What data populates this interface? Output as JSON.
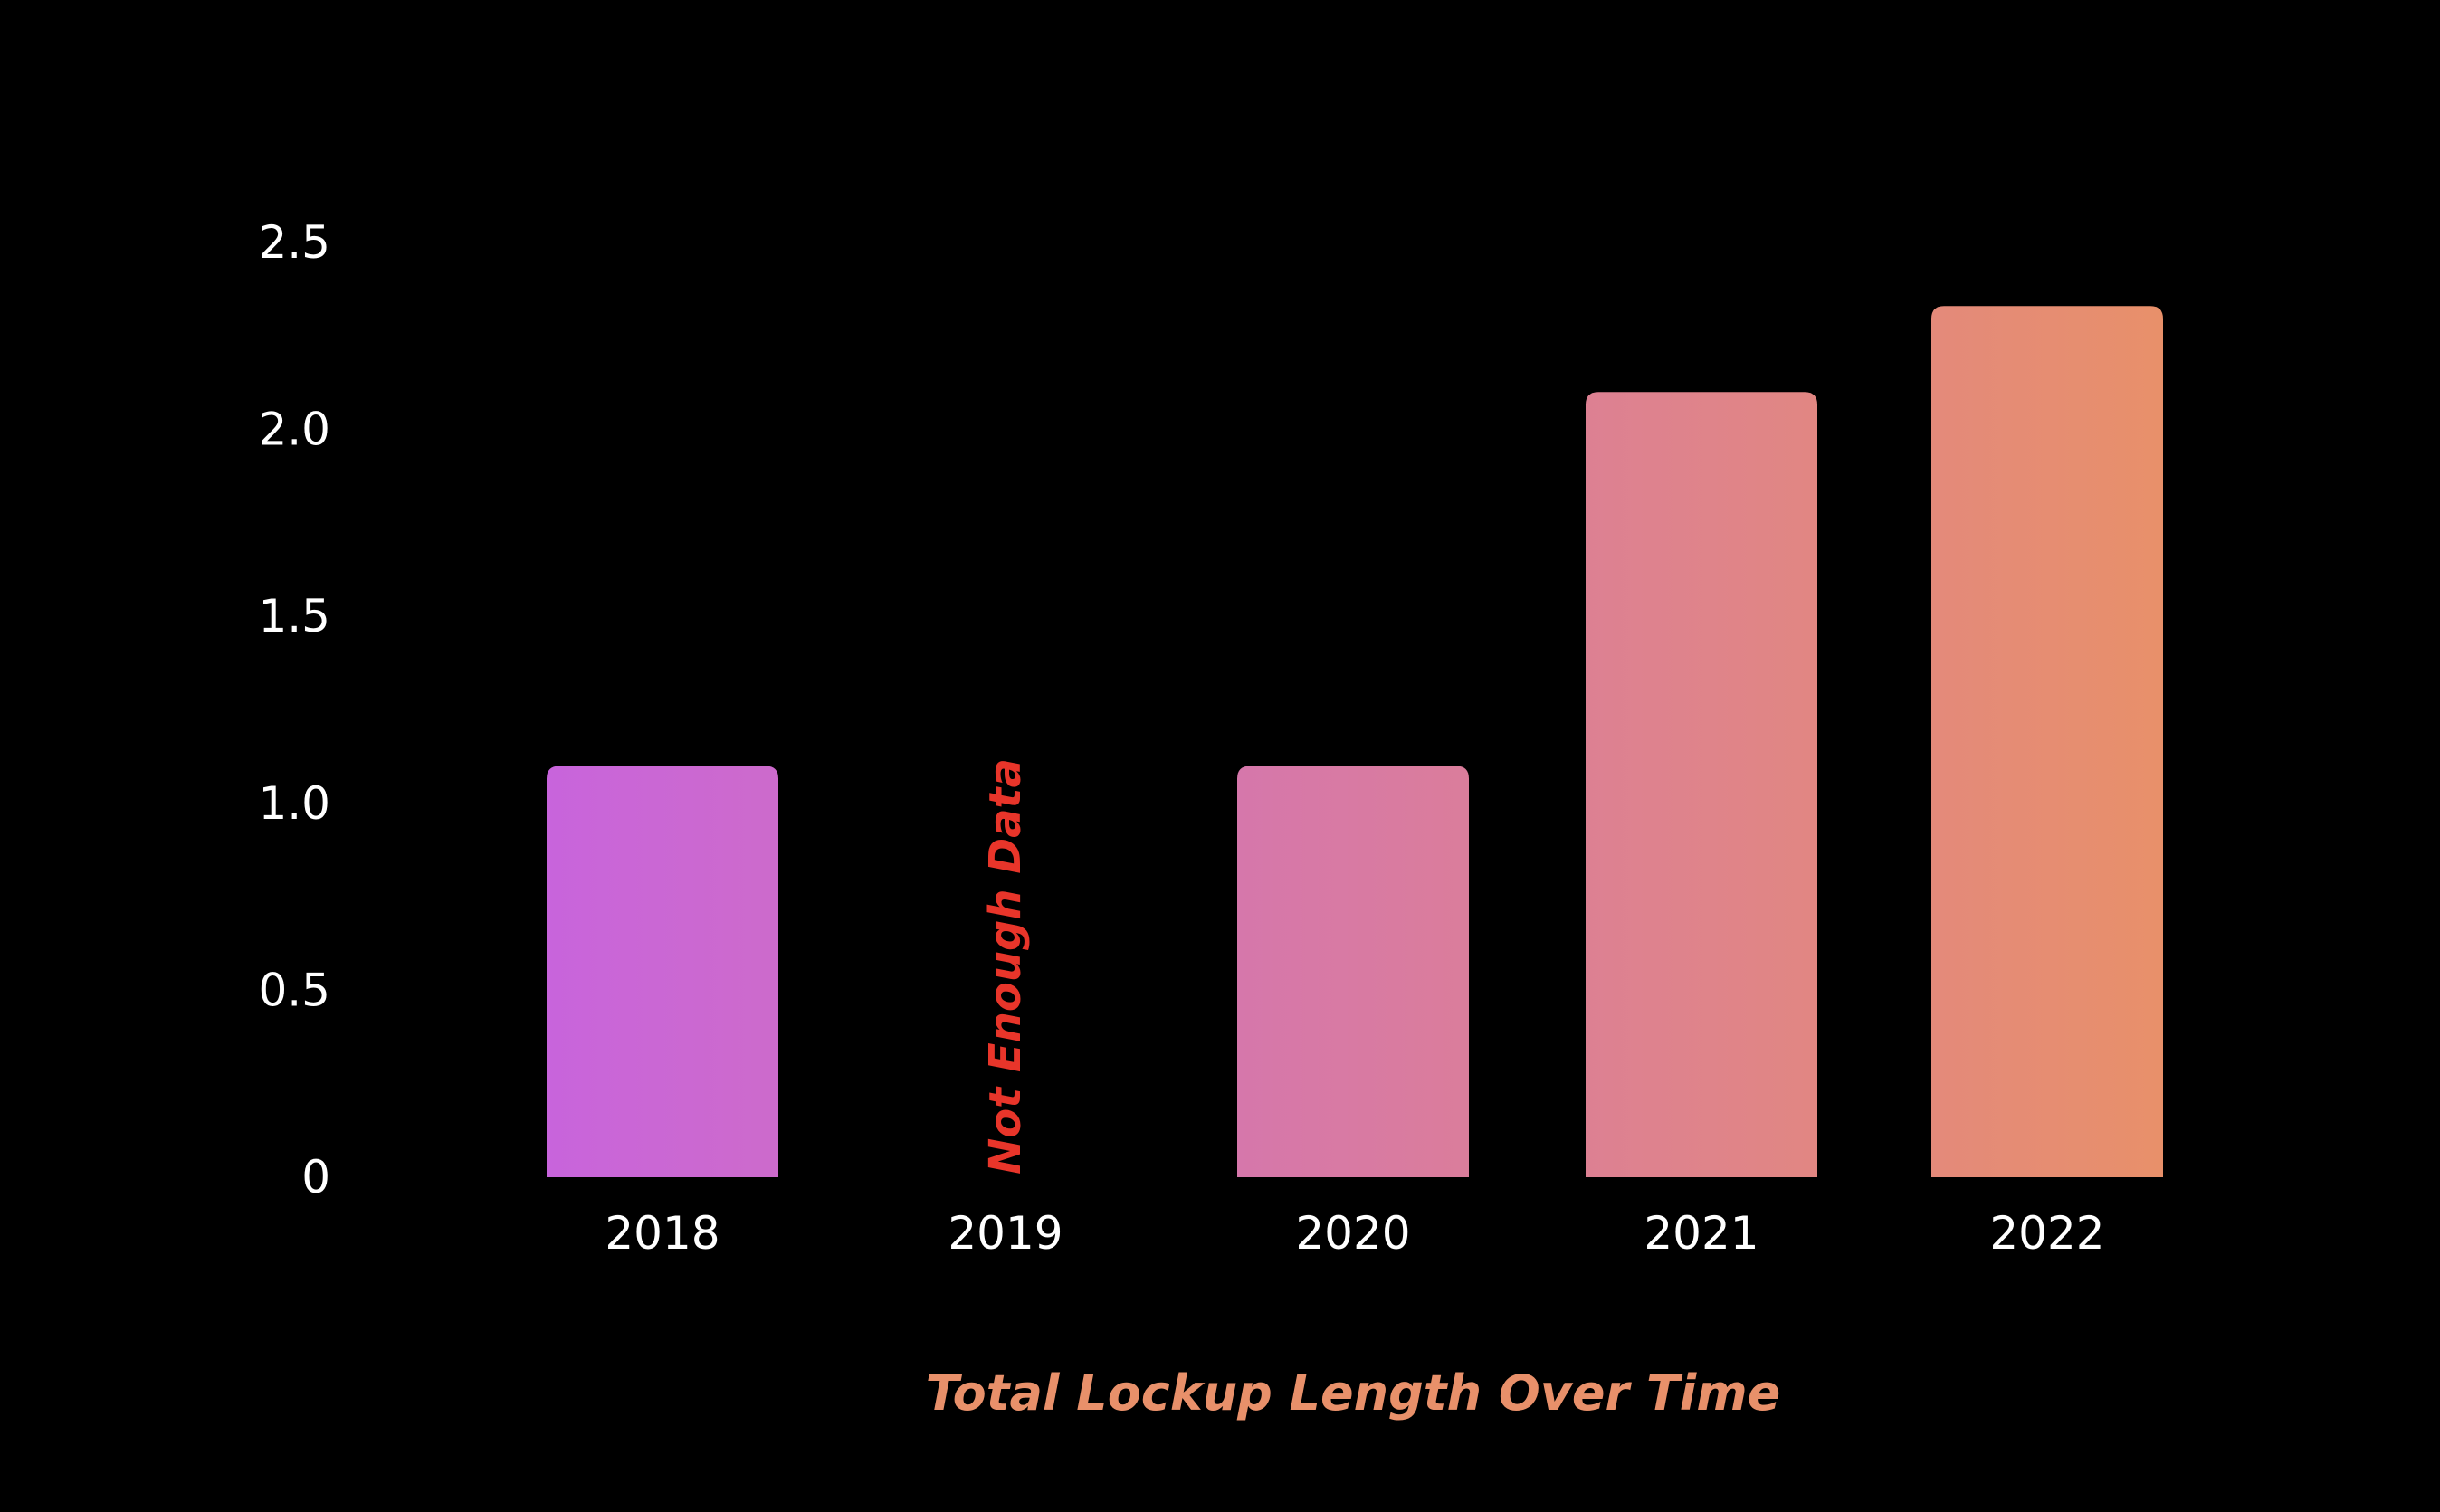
{
  "chart_data": {
    "type": "bar",
    "title": "Total Lockup Length Over Time",
    "xlabel": "",
    "ylabel": "",
    "categories": [
      "2018",
      "2019",
      "2020",
      "2021",
      "2022"
    ],
    "values": [
      1.1,
      null,
      1.1,
      2.1,
      2.33
    ],
    "ylim": [
      0,
      2.5
    ],
    "yticks": [
      0,
      0.5,
      1.0,
      1.5,
      2.0,
      2.5
    ],
    "ytick_labels": [
      "0",
      "0.5",
      "1.0",
      "1.5",
      "2.0",
      "2.5"
    ],
    "grid": false,
    "legend": "none",
    "annotations": [
      {
        "category": "2019",
        "text": "Not Enough Data"
      }
    ]
  },
  "colors": {
    "background": "#000000",
    "bar_gradient_start": "#c864dc",
    "bar_gradient_end": "#e8906a",
    "title": "#e8906a",
    "annotation": "#e8352a",
    "tick_text": "#ffffff"
  }
}
